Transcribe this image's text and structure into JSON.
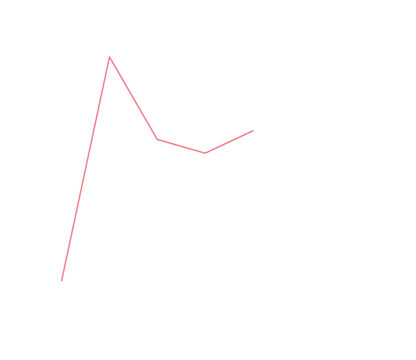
{
  "chart_data": {
    "type": "line",
    "x": [
      1,
      2,
      3,
      4,
      5
    ],
    "series": [
      {
        "values": [
          0,
          13,
          8.2,
          7.4,
          8.7
        ],
        "color": "#f07786"
      }
    ],
    "ylim": [
      0,
      13
    ],
    "xlim": [
      1,
      5
    ],
    "grid": false,
    "axes_visible": false,
    "legend": "none"
  }
}
